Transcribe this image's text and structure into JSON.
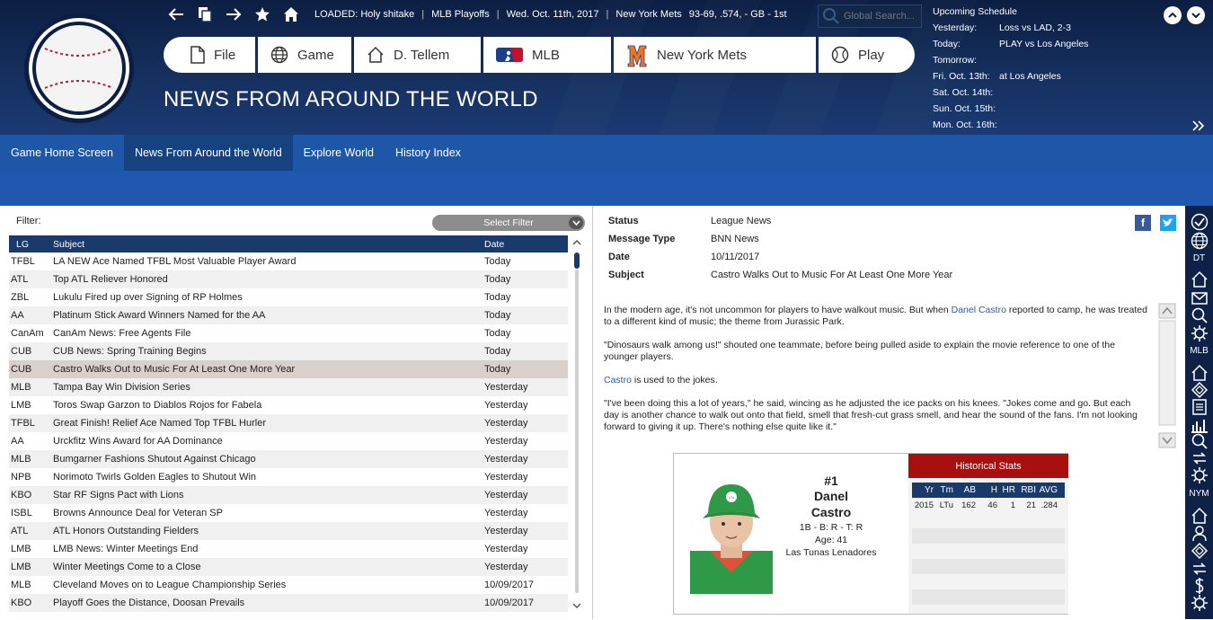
{
  "header": {
    "loaded": "LOADED: Holy shitake",
    "mode": "MLB Playoffs",
    "date": "Wed. Oct. 11th, 2017",
    "team": "New York Mets",
    "record": "93-69, .574, - GB - 1st",
    "search_placeholder": "Global Search...",
    "page_title": "NEWS FROM AROUND THE WORLD"
  },
  "topbuttons": {
    "file": "File",
    "game": "Game",
    "manager": "D. Tellem",
    "league": "MLB",
    "team": "New York Mets",
    "play": "Play"
  },
  "schedule": {
    "title": "Upcoming Schedule",
    "rows": [
      {
        "label": "Yesterday:",
        "value": "Loss vs LAD, 2-3"
      },
      {
        "label": "Today:",
        "value": "PLAY vs Los Angeles"
      },
      {
        "label": "Tomorrow:",
        "value": ""
      },
      {
        "label": "Fri. Oct. 13th:",
        "value": "at Los Angeles"
      },
      {
        "label": "Sat. Oct. 14th:",
        "value": ""
      },
      {
        "label": "Sun. Oct. 15th:",
        "value": ""
      },
      {
        "label": "Mon. Oct. 16th:",
        "value": ""
      }
    ]
  },
  "subnav": [
    "Game Home Screen",
    "News From Around the World",
    "Explore World",
    "History Index"
  ],
  "filter": {
    "label": "Filter:",
    "select": "Select Filter"
  },
  "table": {
    "headers": {
      "lg": "LG",
      "subject": "Subject",
      "date": "Date"
    },
    "rows": [
      {
        "lg": "TFBL",
        "subject": "LA NEW Ace Named TFBL Most Valuable Player Award",
        "date": "Today"
      },
      {
        "lg": "ATL",
        "subject": "Top ATL Reliever Honored",
        "date": "Today"
      },
      {
        "lg": "ZBL",
        "subject": "Lukulu Fired up over Signing of RP Holmes",
        "date": "Today"
      },
      {
        "lg": "AA",
        "subject": "Platinum Stick Award Winners Named for the AA",
        "date": "Today"
      },
      {
        "lg": "CanAm",
        "subject": "CanAm News: Free Agents File",
        "date": "Today"
      },
      {
        "lg": "CUB",
        "subject": "CUB News: Spring Training Begins",
        "date": "Today"
      },
      {
        "lg": "CUB",
        "subject": "Castro Walks Out to Music For At Least One More Year",
        "date": "Today"
      },
      {
        "lg": "MLB",
        "subject": "Tampa Bay Win Division Series",
        "date": "Yesterday"
      },
      {
        "lg": "LMB",
        "subject": "Toros Swap Garzon to Diablos Rojos for Fabela",
        "date": "Yesterday"
      },
      {
        "lg": "TFBL",
        "subject": "Great Finish! Relief Ace Named Top TFBL Hurler",
        "date": "Yesterday"
      },
      {
        "lg": "AA",
        "subject": "Urckfitz Wins Award for AA Dominance",
        "date": "Yesterday"
      },
      {
        "lg": "MLB",
        "subject": "Bumgarner Fashions Shutout Against Chicago",
        "date": "Yesterday"
      },
      {
        "lg": "NPB",
        "subject": "Norimoto Twirls Golden Eagles to Shutout Win",
        "date": "Yesterday"
      },
      {
        "lg": "KBO",
        "subject": "Star RF Signs Pact with Lions",
        "date": "Yesterday"
      },
      {
        "lg": "ISBL",
        "subject": "Browns Announce Deal for Veteran SP",
        "date": "Yesterday"
      },
      {
        "lg": "ATL",
        "subject": "ATL Honors Outstanding Fielders",
        "date": "Yesterday"
      },
      {
        "lg": "LMB",
        "subject": "LMB News: Winter Meetings End",
        "date": "Yesterday"
      },
      {
        "lg": "LMB",
        "subject": "Winter Meetings Come to a Close",
        "date": "Yesterday"
      },
      {
        "lg": "MLB",
        "subject": "Cleveland Moves on to League Championship Series",
        "date": "10/09/2017"
      },
      {
        "lg": "KBO",
        "subject": "Playoff Goes the Distance, Doosan Prevails",
        "date": "10/09/2017"
      }
    ]
  },
  "article": {
    "meta": [
      {
        "k": "Status",
        "v": "League News"
      },
      {
        "k": "Message Type",
        "v": "BNN News"
      },
      {
        "k": "Date",
        "v": "10/11/2017"
      },
      {
        "k": "Subject",
        "v": "Castro Walks Out to Music For At Least One More Year"
      }
    ],
    "p1_a": "In the modern age, it's not uncommon for players to have walkout music. But when ",
    "p1_link": "Danel Castro",
    "p1_b": " reported to camp, he was treated to a different kind of music; the theme from Jurassic Park.",
    "p2": "\"Dinosaurs walk among us!\" shouted one teammate, before being pulled aside to explain the movie reference to one of the younger players.",
    "p3_link": "Castro",
    "p3_b": " is used to the jokes.",
    "p4": "\"I've been doing this a lot of years,\" he said, wincing as he adjusted the ice packs on his knees. \"Jokes come and go. But each day is another chance to walk out onto that field, smell that fresh-cut grass smell, and hear the sound of the fans. I'm not looking forward to giving it up. There's nothing else quite like it.\""
  },
  "player": {
    "number": "#1",
    "first": "Danel",
    "last": "Castro",
    "bats": "1B - B: R - T: R",
    "age": "Age: 41",
    "team": "Las Tunas Lenadores",
    "cap_logo": "LTu"
  },
  "hist": {
    "title": "Historical Stats",
    "headers": [
      "Yr",
      "Tm",
      "AB",
      "H",
      "HR",
      "RBI",
      "AVG"
    ],
    "rows": [
      [
        "2015",
        "LTu",
        "162",
        "46",
        "1",
        "21",
        ".284"
      ]
    ]
  },
  "sidebar_labels": {
    "dt": "DT",
    "mlb": "MLB",
    "nym": "NYM"
  },
  "colors": {
    "nav_dark": "#0c1e42",
    "nav_blue": "#1e56a8",
    "table_header": "#1a3a6b",
    "hist_red": "#a81010",
    "link": "#2a5aa6"
  }
}
